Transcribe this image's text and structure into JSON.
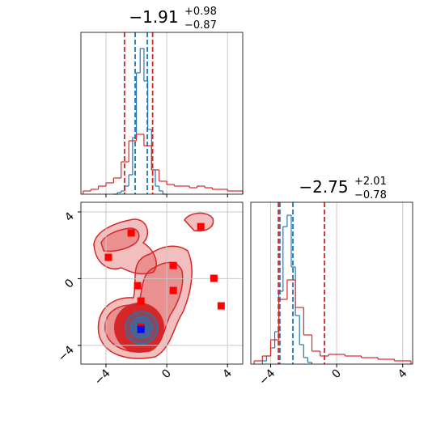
{
  "chart_data": [
    {
      "type": "histogram",
      "title": {
        "median": "−1.91",
        "upper": "+0.98",
        "lower": "−0.87"
      },
      "xlim": [
        -5.65,
        5.0
      ],
      "xticks": [
        {
          "value": -4,
          "label": "−4"
        },
        0,
        4
      ],
      "tick_labels": false,
      "ylim": [
        0,
        1
      ],
      "grid": true,
      "series": [
        {
          "color": "#1f77b4",
          "bins": [
            -3.5,
            -3.25,
            -3.0,
            -2.75,
            -2.5,
            -2.25,
            -2.0,
            -1.75,
            -1.5,
            -1.25,
            -1.0,
            -0.75,
            -0.5,
            -0.25,
            0.0
          ],
          "values": [
            0.0,
            0.01,
            0.02,
            0.05,
            0.12,
            0.35,
            0.75,
            0.9,
            0.7,
            0.4,
            0.15,
            0.05,
            0.02,
            0.0
          ],
          "quantiles": [
            -2.08,
            -1.28
          ]
        },
        {
          "color": "#d62728",
          "bins": [
            -5.5,
            -5.0,
            -4.5,
            -4.0,
            -3.5,
            -3.0,
            -2.5,
            -2.0,
            -1.5,
            -1.0,
            -0.5,
            0.0,
            0.5,
            1.0,
            1.5,
            2.0,
            2.5,
            3.0,
            3.5,
            4.0,
            4.5,
            5.0
          ],
          "values": [
            0.02,
            0.03,
            0.05,
            0.07,
            0.1,
            0.2,
            0.33,
            0.37,
            0.3,
            0.15,
            0.08,
            0.06,
            0.05,
            0.05,
            0.04,
            0.05,
            0.04,
            0.03,
            0.03,
            0.02,
            0.02
          ],
          "quantiles": [
            -2.78,
            -0.93
          ]
        }
      ]
    },
    {
      "type": "scatter",
      "xlim": [
        -5.65,
        5.0
      ],
      "xticks": [
        {
          "value": -4,
          "label": "−4"
        },
        0,
        4
      ],
      "ylim": [
        -5.12,
        4.58
      ],
      "yticks": [
        {
          "value": -4,
          "label": "−4"
        },
        0,
        4
      ],
      "grid": true,
      "series": [
        {
          "color": "#ff0000",
          "x": [
            -3.84,
            -2.34,
            2.24,
            0.43,
            -1.92,
            0.43,
            3.1,
            3.58,
            -1.7,
            -1.7
          ],
          "y": [
            1.28,
            2.74,
            3.12,
            0.79,
            -0.42,
            -0.71,
            0.02,
            -1.63,
            -1.34,
            -2.9
          ]
        },
        {
          "color": "#0000ff",
          "x": [
            -1.7
          ],
          "y": [
            -3.04
          ]
        }
      ]
    },
    {
      "type": "histogram",
      "title": {
        "median": "−2.75",
        "upper": "+2.01",
        "lower": "−0.78"
      },
      "xlim": [
        -5.2,
        4.6
      ],
      "xticks": [
        {
          "value": -4,
          "label": "−4"
        },
        0,
        4
      ],
      "tick_labels": true,
      "ylim": [
        0,
        1
      ],
      "grid": true,
      "series": [
        {
          "color": "#1f77b4",
          "bins": [
            -4.5,
            -4.25,
            -4.0,
            -3.75,
            -3.5,
            -3.25,
            -3.0,
            -2.75,
            -2.5,
            -2.25,
            -2.0,
            -1.75,
            -1.5
          ],
          "values": [
            0.02,
            0.05,
            0.1,
            0.2,
            0.45,
            0.85,
            0.92,
            0.6,
            0.3,
            0.12,
            0.04,
            0.01
          ],
          "quantiles": [
            -3.44,
            -2.65
          ]
        },
        {
          "color": "#d62728",
          "bins": [
            -5.0,
            -4.5,
            -4.0,
            -3.5,
            -3.0,
            -2.5,
            -2.0,
            -1.5,
            -1.0,
            -0.5,
            0.0,
            0.5,
            1.0,
            1.5,
            2.0,
            2.5,
            3.0,
            3.5,
            4.0,
            4.5
          ],
          "values": [
            0.02,
            0.05,
            0.15,
            0.4,
            0.52,
            0.35,
            0.18,
            0.08,
            0.05,
            0.06,
            0.06,
            0.05,
            0.05,
            0.04,
            0.04,
            0.03,
            0.03,
            0.02,
            0.02
          ],
          "quantiles": [
            -3.53,
            -0.74
          ]
        }
      ]
    }
  ]
}
